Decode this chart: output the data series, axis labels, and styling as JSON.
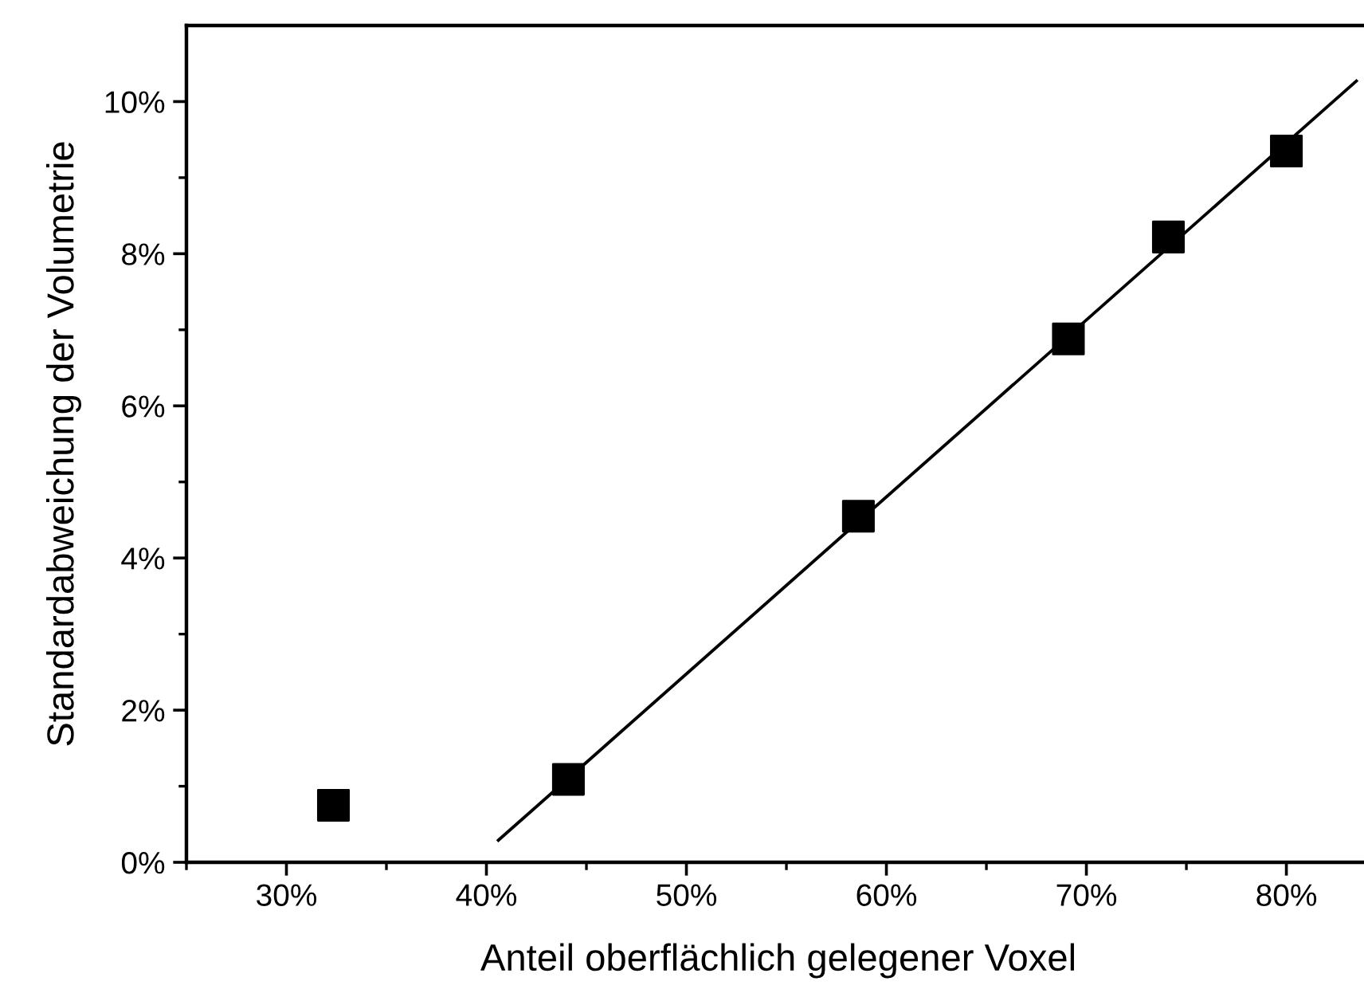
{
  "chart_data": {
    "type": "scatter",
    "xlabel": "Anteil oberflächlich gelegener Voxel",
    "ylabel": "Standardabweichung der Volumetrie",
    "series": [
      {
        "color": "#000000",
        "marker": "square",
        "x": [
          32.35,
          44.1,
          58.6,
          69.1,
          74.1,
          80.0
        ],
        "values": [
          0.75,
          1.09,
          4.55,
          6.88,
          8.22,
          9.35
        ]
      },
      {
        "type": "line",
        "color": "#000000",
        "marker": "none",
        "line_style": "solid",
        "x": [
          40.6,
          83.5
        ],
        "values": [
          0.29,
          10.27
        ]
      }
    ],
    "xlim": [
      25,
      84.2
    ],
    "ylim": [
      0,
      11
    ],
    "xticks": [
      {
        "value": 30,
        "label": "30%"
      },
      {
        "value": 40,
        "label": "40%"
      },
      {
        "value": 50,
        "label": "50%"
      },
      {
        "value": 60,
        "label": "60%"
      },
      {
        "value": 70,
        "label": "70%"
      },
      {
        "value": 80,
        "label": "80%"
      }
    ],
    "yticks": [
      {
        "value": 0,
        "label": "0%"
      },
      {
        "value": 2,
        "label": "2%"
      },
      {
        "value": 4,
        "label": "4%"
      },
      {
        "value": 6,
        "label": "6%"
      },
      {
        "value": 8,
        "label": "8%"
      },
      {
        "value": 10,
        "label": "10%"
      }
    ],
    "grid": false,
    "legend": false
  }
}
